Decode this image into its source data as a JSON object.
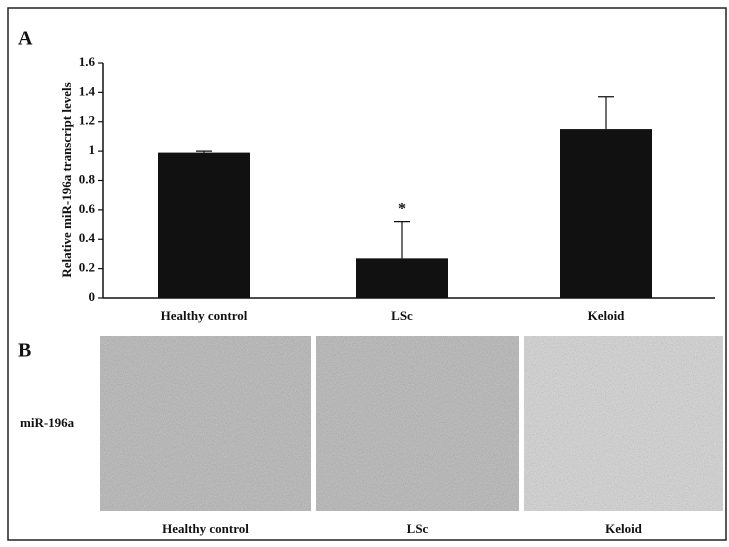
{
  "chart_data": {
    "type": "bar",
    "panel_label": "A",
    "y_label": "Relative miR-196a transcript levels",
    "categories": [
      "Healthy control",
      "LSc",
      "Keloid"
    ],
    "values": [
      0.99,
      0.27,
      1.15
    ],
    "errors": [
      0.01,
      0.25,
      0.22
    ],
    "color": "#111111",
    "ylim": [
      0,
      1.6
    ],
    "yticks": [
      0,
      0.2,
      0.4,
      0.6,
      0.8,
      1,
      1.2,
      1.4,
      1.6
    ],
    "annotations": [
      {
        "text": "*",
        "category": "LSc"
      }
    ]
  },
  "panel_b": {
    "label": "B",
    "row_label": "miR-196a",
    "images": [
      "Healthy control",
      "LSc",
      "Keloid"
    ]
  }
}
